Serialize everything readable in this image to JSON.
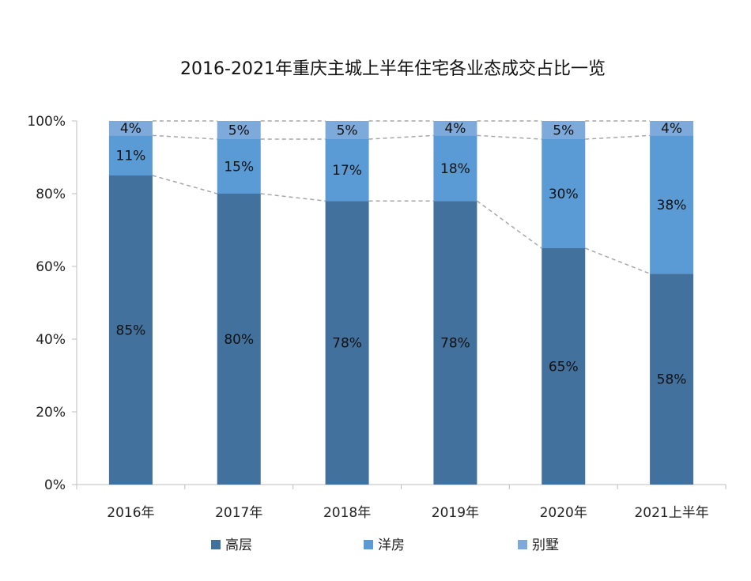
{
  "chart_data": {
    "type": "bar",
    "stacked": true,
    "title": "2016-2021年重庆主城上半年住宅各业态成交占比一览",
    "categories": [
      "2016年",
      "2017年",
      "2018年",
      "2019年",
      "2020年",
      "2021上半年"
    ],
    "series": [
      {
        "name": "高层",
        "values": [
          85,
          80,
          78,
          78,
          65,
          58
        ],
        "labels": [
          "85%",
          "80%",
          "78%",
          "78%",
          "65%",
          "58%"
        ],
        "color": "#41719c"
      },
      {
        "name": "洋房",
        "values": [
          11,
          15,
          17,
          18,
          30,
          38
        ],
        "labels": [
          "11%",
          "15%",
          "17%",
          "18%",
          "30%",
          "38%"
        ],
        "color": "#5b9bd5"
      },
      {
        "name": "别墅",
        "values": [
          4,
          5,
          5,
          4,
          5,
          4
        ],
        "labels": [
          "4%",
          "5%",
          "5%",
          "4%",
          "5%",
          "4%"
        ],
        "color": "#7eaadb"
      }
    ],
    "ylim": [
      0,
      100
    ],
    "yticks": [
      "0%",
      "20%",
      "40%",
      "60%",
      "80%",
      "100%"
    ],
    "xlabel": "",
    "ylabel": "",
    "grid": false,
    "series_lines": true,
    "legend": "bottom"
  }
}
